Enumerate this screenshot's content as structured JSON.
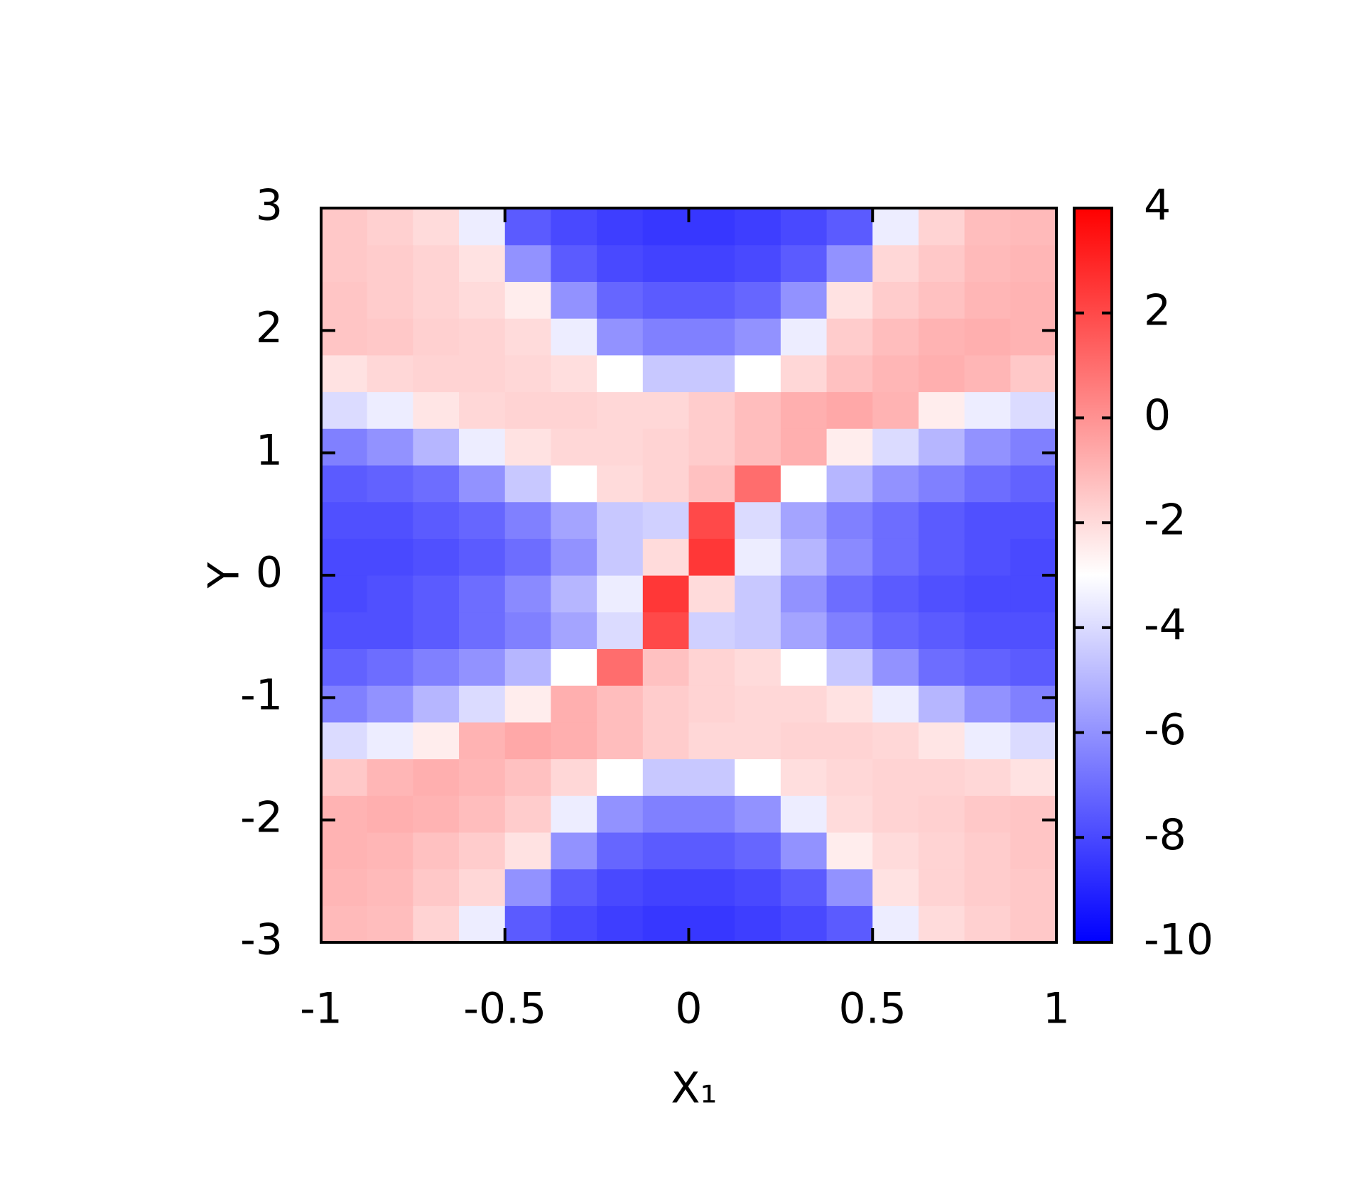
{
  "chart_data": {
    "type": "heatmap",
    "xlabel": "X₁",
    "ylabel": "Y",
    "x": [
      -0.9375,
      -0.8125,
      -0.6875,
      -0.5625,
      -0.4375,
      -0.3125,
      -0.1875,
      -0.0625,
      0.0625,
      0.1875,
      0.3125,
      0.4375,
      0.5625,
      0.6875,
      0.8125,
      0.9375
    ],
    "y": [
      -2.85,
      -2.55,
      -2.25,
      -1.95,
      -1.65,
      -1.35,
      -1.05,
      -0.75,
      -0.45,
      -0.15,
      0.15,
      0.45,
      0.75,
      1.05,
      1.35,
      1.65,
      1.95,
      2.25,
      2.55,
      2.85
    ],
    "values": [
      [
        -1.1,
        -1.2,
        -1.8,
        -3.5,
        -7.5,
        -8.0,
        -8.3,
        -8.5,
        -8.5,
        -8.3,
        -8.0,
        -7.5,
        -3.5,
        -2.0,
        -1.7,
        -1.5
      ],
      [
        -1.0,
        -1.1,
        -1.5,
        -1.9,
        -6.0,
        -7.5,
        -8.0,
        -8.2,
        -8.2,
        -8.0,
        -7.5,
        -6.0,
        -2.2,
        -1.8,
        -1.6,
        -1.5
      ],
      [
        -0.9,
        -1.0,
        -1.3,
        -1.6,
        -2.2,
        -6.0,
        -7.2,
        -7.5,
        -7.5,
        -7.2,
        -6.0,
        -2.5,
        -2.0,
        -1.8,
        -1.6,
        -1.4
      ],
      [
        -0.9,
        -0.8,
        -0.9,
        -1.2,
        -1.6,
        -3.5,
        -6.0,
        -6.5,
        -6.5,
        -6.0,
        -3.5,
        -2.0,
        -1.8,
        -1.7,
        -1.5,
        -1.4
      ],
      [
        -1.5,
        -1.0,
        -0.8,
        -1.0,
        -1.3,
        -1.9,
        -3.0,
        -4.5,
        -4.5,
        -3.0,
        -2.1,
        -1.9,
        -1.8,
        -1.8,
        -1.9,
        -2.2
      ],
      [
        -4.0,
        -3.5,
        -2.5,
        -0.9,
        -0.6,
        -0.8,
        -1.2,
        -1.6,
        -1.9,
        -1.9,
        -1.8,
        -1.8,
        -1.9,
        -2.3,
        -3.5,
        -4.0
      ],
      [
        -6.5,
        -6.0,
        -5.0,
        -4.0,
        -2.5,
        -0.8,
        -1.2,
        -1.6,
        -1.8,
        -1.9,
        -1.9,
        -2.2,
        -3.5,
        -5.0,
        -6.0,
        -6.5
      ],
      [
        -7.3,
        -7.0,
        -6.5,
        -6.0,
        -5.0,
        -3.0,
        1.0,
        -1.3,
        -1.8,
        -2.0,
        -3.0,
        -4.5,
        -6.0,
        -7.0,
        -7.3,
        -7.5
      ],
      [
        -7.8,
        -7.8,
        -7.5,
        -7.0,
        -6.5,
        -5.5,
        -4.0,
        2.0,
        -4.3,
        -4.5,
        -5.5,
        -6.5,
        -7.2,
        -7.5,
        -7.8,
        -7.8
      ],
      [
        -8.0,
        -7.8,
        -7.5,
        -7.0,
        -6.2,
        -5.0,
        -3.5,
        2.5,
        -2.0,
        -4.5,
        -6.0,
        -7.0,
        -7.5,
        -7.8,
        -8.0,
        -8.0
      ],
      [
        -8.0,
        -8.0,
        -7.8,
        -7.5,
        -7.0,
        -6.0,
        -4.5,
        -2.0,
        2.5,
        -3.5,
        -5.0,
        -6.2,
        -7.0,
        -7.5,
        -7.8,
        -8.0
      ],
      [
        -7.8,
        -7.8,
        -7.5,
        -7.2,
        -6.5,
        -5.5,
        -4.5,
        -4.3,
        2.0,
        -4.0,
        -5.5,
        -6.5,
        -7.0,
        -7.5,
        -7.8,
        -7.8
      ],
      [
        -7.5,
        -7.3,
        -7.0,
        -6.0,
        -4.5,
        -3.0,
        -2.0,
        -1.8,
        -1.3,
        1.0,
        -3.0,
        -5.0,
        -6.0,
        -6.5,
        -7.0,
        -7.3
      ],
      [
        -6.5,
        -6.0,
        -5.0,
        -3.5,
        -2.2,
        -1.9,
        -1.9,
        -1.8,
        -1.6,
        -1.2,
        -0.8,
        -2.5,
        -4.0,
        -5.0,
        -6.0,
        -6.5
      ],
      [
        -4.0,
        -3.5,
        -2.3,
        -1.9,
        -1.8,
        -1.8,
        -1.9,
        -1.9,
        -1.6,
        -1.2,
        -0.8,
        -0.6,
        -0.9,
        -2.5,
        -3.5,
        -4.0
      ],
      [
        -2.2,
        -1.9,
        -1.8,
        -1.8,
        -1.9,
        -2.1,
        -3.0,
        -4.5,
        -4.5,
        -3.0,
        -1.9,
        -1.3,
        -1.0,
        -0.8,
        -1.0,
        -1.5
      ],
      [
        -1.4,
        -1.5,
        -1.7,
        -1.8,
        -2.0,
        -3.5,
        -6.0,
        -6.5,
        -6.5,
        -6.0,
        -3.5,
        -1.6,
        -1.2,
        -0.9,
        -0.8,
        -0.9
      ],
      [
        -1.4,
        -1.6,
        -1.8,
        -2.0,
        -2.5,
        -6.0,
        -7.2,
        -7.5,
        -7.5,
        -7.2,
        -6.0,
        -2.2,
        -1.6,
        -1.3,
        -1.0,
        -0.9
      ],
      [
        -1.5,
        -1.6,
        -1.8,
        -2.2,
        -6.0,
        -7.5,
        -8.0,
        -8.2,
        -8.2,
        -8.0,
        -7.5,
        -6.0,
        -1.9,
        -1.5,
        -1.1,
        -1.0
      ],
      [
        -1.5,
        -1.7,
        -2.0,
        -3.5,
        -7.5,
        -8.0,
        -8.3,
        -8.5,
        -8.5,
        -8.3,
        -8.0,
        -7.5,
        -3.5,
        -1.8,
        -1.2,
        -1.1
      ]
    ],
    "xlim": [
      -1,
      1
    ],
    "xticks": [
      -1,
      -0.5,
      0,
      0.5,
      1
    ],
    "ylim": [
      -3,
      3
    ],
    "yticks": [
      -3,
      -2,
      -1,
      0,
      1,
      2,
      3
    ],
    "colorbar": {
      "lim": [
        -10,
        4
      ],
      "ticks": [
        -10,
        -8,
        -6,
        -4,
        -2,
        0,
        2,
        4
      ],
      "colormap": [
        "#0000ff",
        "#ffffff",
        "#ff0000"
      ]
    }
  }
}
